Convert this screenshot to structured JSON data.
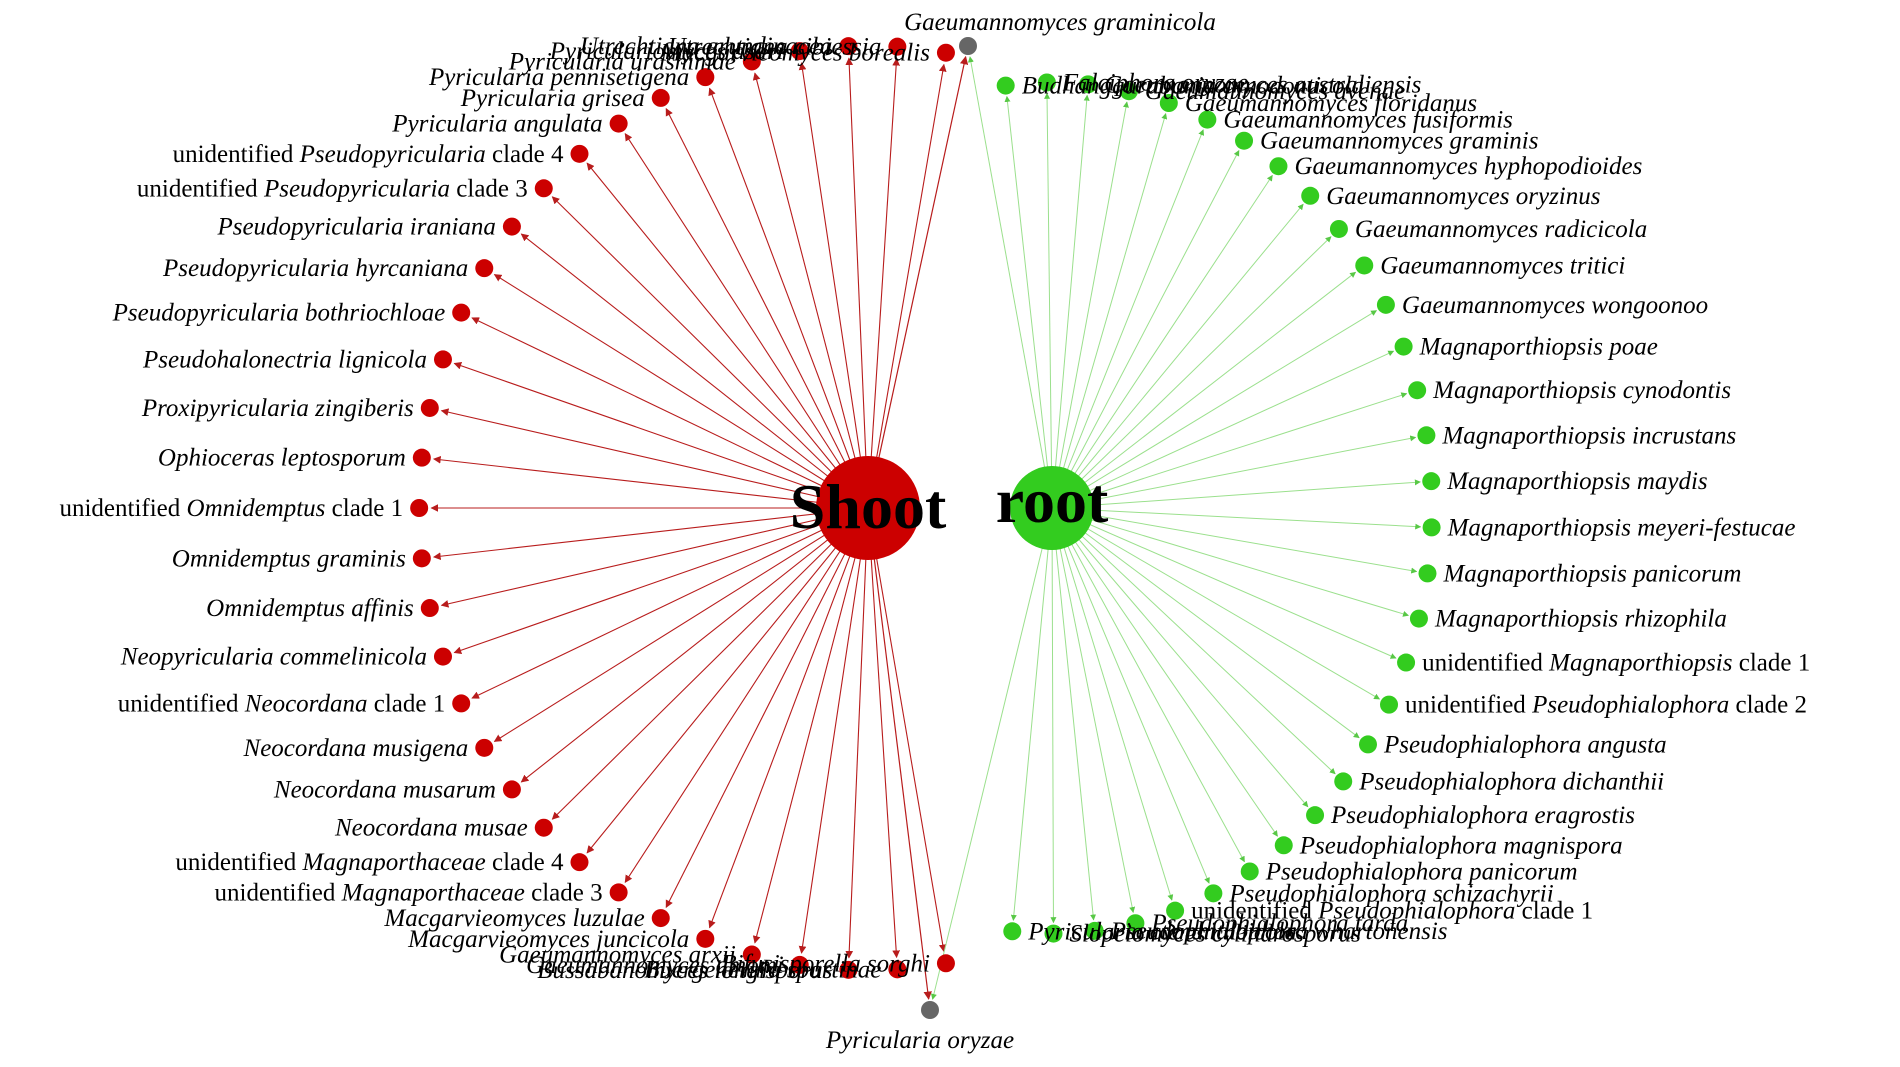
{
  "colors": {
    "shoot": "#cc0000",
    "root": "#33cc1f",
    "shoot_edge": "#b81c1c",
    "root_edge": "#9be08d",
    "shared": "#666666"
  },
  "hubs": {
    "shoot": "Shoot",
    "root": "root"
  },
  "shared_taxa": {
    "top": "Gaeumannomyces graminicola",
    "bottom": "Pyricularia oryzae"
  },
  "shoot_taxa": [
    {
      "pre": "",
      "it": "Macgarvieomyces borealis",
      "post": ""
    },
    {
      "pre": "",
      "it": "Utrechtiana cibiessia",
      "post": ""
    },
    {
      "pre": "",
      "it": "Utrechtiana arundinacea",
      "post": ""
    },
    {
      "pre": "",
      "it": "Pyriculariomyces asari",
      "post": ""
    },
    {
      "pre": "",
      "it": "Pyricularia urashimae",
      "post": ""
    },
    {
      "pre": "",
      "it": "Pyricularia pennisetigena",
      "post": ""
    },
    {
      "pre": "",
      "it": "Pyricularia grisea",
      "post": ""
    },
    {
      "pre": "",
      "it": "Pyricularia angulata",
      "post": ""
    },
    {
      "pre": "unidentified ",
      "it": "Pseudopyricularia",
      "post": " clade 4"
    },
    {
      "pre": "unidentified ",
      "it": "Pseudopyricularia",
      "post": " clade 3"
    },
    {
      "pre": "",
      "it": "Pseudopyricularia iraniana",
      "post": ""
    },
    {
      "pre": "",
      "it": "Pseudopyricularia hyrcaniana",
      "post": ""
    },
    {
      "pre": "",
      "it": "Pseudopyricularia bothriochloae",
      "post": ""
    },
    {
      "pre": "",
      "it": "Pseudohalonectria lignicola",
      "post": ""
    },
    {
      "pre": "",
      "it": "Proxipyricularia zingiberis",
      "post": ""
    },
    {
      "pre": "",
      "it": "Ophioceras leptosporum",
      "post": ""
    },
    {
      "pre": "unidentified ",
      "it": "Omnidemptus",
      "post": " clade 1"
    },
    {
      "pre": "",
      "it": "Omnidemptus graminis",
      "post": ""
    },
    {
      "pre": "",
      "it": "Omnidemptus affinis",
      "post": ""
    },
    {
      "pre": "",
      "it": "Neopyricularia commelinicola",
      "post": ""
    },
    {
      "pre": "unidentified ",
      "it": "Neocordana",
      "post": " clade 1"
    },
    {
      "pre": "",
      "it": "Neocordana musigena",
      "post": ""
    },
    {
      "pre": "",
      "it": "Neocordana musarum",
      "post": ""
    },
    {
      "pre": "",
      "it": "Neocordana musae",
      "post": ""
    },
    {
      "pre": "unidentified ",
      "it": "Magnaporthaceae",
      "post": " clade 4"
    },
    {
      "pre": "unidentified ",
      "it": "Magnaporthaceae",
      "post": " clade 3"
    },
    {
      "pre": "",
      "it": "Macgarvieomyces luzulae",
      "post": ""
    },
    {
      "pre": "",
      "it": "Macgarvieomyces juncicola",
      "post": ""
    },
    {
      "pre": "",
      "it": "Gaeumannomyces arxii",
      "post": ""
    },
    {
      "pre": "",
      "it": "Gaeumannomyces amomi",
      "post": ""
    },
    {
      "pre": "",
      "it": "Bussabanomyces longisporus",
      "post": ""
    },
    {
      "pre": "",
      "it": "Buergenerula spartinae",
      "post": ""
    },
    {
      "pre": "",
      "it": "Bifusisporella sorghi",
      "post": ""
    }
  ],
  "root_taxa": [
    {
      "pre": "",
      "it": "Budhanggurabania cynodonticola",
      "post": ""
    },
    {
      "pre": "",
      "it": "Falciphora oryzae",
      "post": ""
    },
    {
      "pre": "",
      "it": "Gaeumannomyces australiensis",
      "post": ""
    },
    {
      "pre": "",
      "it": "Gaeumannomyces avenae",
      "post": ""
    },
    {
      "pre": "",
      "it": "Gaeumannomyces floridanus",
      "post": ""
    },
    {
      "pre": "",
      "it": "Gaeumannomyces fusiformis",
      "post": ""
    },
    {
      "pre": "",
      "it": "Gaeumannomyces graminis",
      "post": ""
    },
    {
      "pre": "",
      "it": "Gaeumannomyces hyphopodioides",
      "post": ""
    },
    {
      "pre": "",
      "it": "Gaeumannomyces oryzinus",
      "post": ""
    },
    {
      "pre": "",
      "it": "Gaeumannomyces radicicola",
      "post": ""
    },
    {
      "pre": "",
      "it": "Gaeumannomyces tritici",
      "post": ""
    },
    {
      "pre": "",
      "it": "Gaeumannomyces wongoonoo",
      "post": ""
    },
    {
      "pre": "",
      "it": "Magnaporthiopsis poae",
      "post": ""
    },
    {
      "pre": "",
      "it": "Magnaporthiopsis cynodontis",
      "post": ""
    },
    {
      "pre": "",
      "it": "Magnaporthiopsis incrustans",
      "post": ""
    },
    {
      "pre": "",
      "it": "Magnaporthiopsis maydis",
      "post": ""
    },
    {
      "pre": "",
      "it": "Magnaporthiopsis meyeri-festucae",
      "post": ""
    },
    {
      "pre": "",
      "it": "Magnaporthiopsis panicorum",
      "post": ""
    },
    {
      "pre": "",
      "it": "Magnaporthiopsis rhizophila",
      "post": ""
    },
    {
      "pre": "unidentified ",
      "it": "Magnaporthiopsis",
      "post": " clade 1"
    },
    {
      "pre": "unidentified ",
      "it": "Pseudophialophora",
      "post": " clade 2"
    },
    {
      "pre": "",
      "it": "Pseudophialophora angusta",
      "post": ""
    },
    {
      "pre": "",
      "it": "Pseudophialophora dichanthii",
      "post": ""
    },
    {
      "pre": "",
      "it": "Pseudophialophora eragrostis",
      "post": ""
    },
    {
      "pre": "",
      "it": "Pseudophialophora magnispora",
      "post": ""
    },
    {
      "pre": "",
      "it": "Pseudophialophora panicorum",
      "post": ""
    },
    {
      "pre": "",
      "it": "Pseudophialophora schizachyrii",
      "post": ""
    },
    {
      "pre": "unidentified ",
      "it": "Pseudophialophora",
      "post": " clade 1"
    },
    {
      "pre": "",
      "it": "Pseudophialophora tarda",
      "post": ""
    },
    {
      "pre": "",
      "it": "Pseudophialophora whartonensis",
      "post": ""
    },
    {
      "pre": "",
      "it": "Slopeiomyces cylindrosporus",
      "post": ""
    },
    {
      "pre": "",
      "it": "Pyricularia ctenantheicola",
      "post": ""
    }
  ]
}
